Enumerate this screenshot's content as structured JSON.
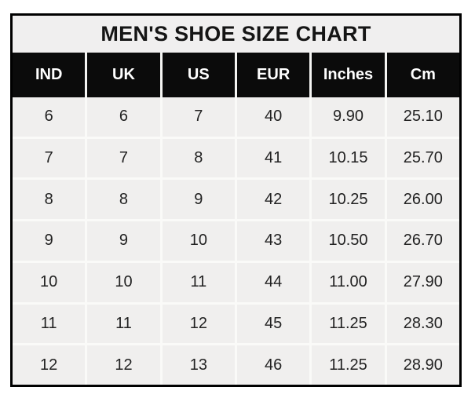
{
  "chart_data": {
    "type": "table",
    "title": "MEN'S SHOE SIZE CHART",
    "columns": [
      "IND",
      "UK",
      "US",
      "EUR",
      "Inches",
      "Cm"
    ],
    "rows": [
      [
        "6",
        "6",
        "7",
        "40",
        "9.90",
        "25.10"
      ],
      [
        "7",
        "7",
        "8",
        "41",
        "10.15",
        "25.70"
      ],
      [
        "8",
        "8",
        "9",
        "42",
        "10.25",
        "26.00"
      ],
      [
        "9",
        "9",
        "10",
        "43",
        "10.50",
        "26.70"
      ],
      [
        "10",
        "10",
        "11",
        "44",
        "11.00",
        "27.90"
      ],
      [
        "11",
        "11",
        "12",
        "45",
        "11.25",
        "28.30"
      ],
      [
        "12",
        "12",
        "13",
        "46",
        "11.25",
        "28.90"
      ]
    ],
    "layout_hints": {
      "grid": "white gridlines between light-gray cells",
      "header_style": "black background, white bold text",
      "title_position": "top, centered"
    },
    "colors": {
      "page_background": "#ffffff",
      "outer_border": "#000000",
      "title_background": "#f0efef",
      "title_text": "#151515",
      "header_background": "#0b0b0b",
      "header_text": "#ffffff",
      "cell_background": "#f0efee",
      "cell_text": "#222222",
      "gridline": "#fafaf8"
    }
  }
}
